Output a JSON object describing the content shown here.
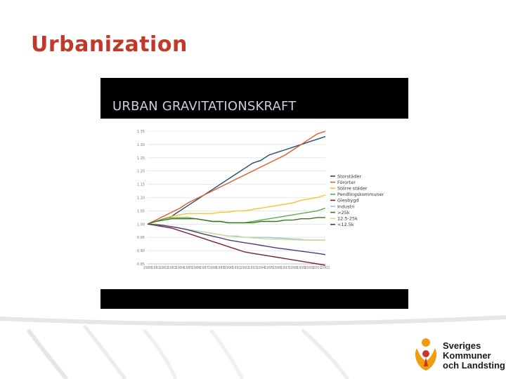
{
  "slide": {
    "title": "Urbanization"
  },
  "panel": {
    "heading": "URBAN GRAVITATIONSKRAFT"
  },
  "logo": {
    "line1": "Sveriges",
    "line2": "Kommuner",
    "line3": "och Landsting"
  },
  "colors": {
    "title": "#c0392b",
    "orange": "#f39c12"
  },
  "chart_data": {
    "type": "line",
    "x": [
      "1980",
      "1981",
      "1982",
      "1983",
      "1984",
      "1985",
      "1986",
      "1987",
      "1988",
      "1989",
      "1990",
      "1991",
      "1992",
      "1993",
      "1994",
      "1995",
      "1996",
      "1997",
      "1998",
      "1999",
      "2000",
      "2001",
      "2002"
    ],
    "ylim": [
      0.85,
      1.35
    ],
    "yticks": [
      0.85,
      0.9,
      0.95,
      1.0,
      1.05,
      1.1,
      1.15,
      1.2,
      1.25,
      1.3,
      1.35
    ],
    "grid": "horizontal",
    "legend": "right",
    "series": [
      {
        "name": "Storstäder",
        "color": "#1f4e79",
        "values": [
          1.0,
          1.01,
          1.02,
          1.03,
          1.05,
          1.07,
          1.09,
          1.11,
          1.13,
          1.15,
          1.17,
          1.19,
          1.21,
          1.23,
          1.24,
          1.26,
          1.27,
          1.28,
          1.29,
          1.3,
          1.31,
          1.32,
          1.33
        ]
      },
      {
        "name": "Förorter",
        "color": "#e05a2b",
        "values": [
          1.0,
          1.015,
          1.03,
          1.045,
          1.06,
          1.08,
          1.095,
          1.11,
          1.125,
          1.14,
          1.155,
          1.17,
          1.185,
          1.2,
          1.215,
          1.23,
          1.245,
          1.26,
          1.28,
          1.3,
          1.32,
          1.34,
          1.35
        ]
      },
      {
        "name": "Större städer",
        "color": "#f4c430",
        "values": [
          1.0,
          1.01,
          1.02,
          1.03,
          1.035,
          1.04,
          1.04,
          1.04,
          1.04,
          1.045,
          1.045,
          1.05,
          1.05,
          1.055,
          1.06,
          1.065,
          1.07,
          1.075,
          1.08,
          1.09,
          1.095,
          1.1,
          1.11
        ]
      },
      {
        "name": "Pendlingskommuner",
        "color": "#6aa84f",
        "values": [
          1.0,
          1.01,
          1.02,
          1.025,
          1.025,
          1.025,
          1.02,
          1.015,
          1.01,
          1.01,
          1.005,
          1.005,
          1.005,
          1.01,
          1.015,
          1.02,
          1.025,
          1.03,
          1.035,
          1.04,
          1.045,
          1.05,
          1.06
        ]
      },
      {
        "name": "Glesbygd",
        "color": "#7f1d3a",
        "values": [
          1.0,
          0.995,
          0.99,
          0.985,
          0.975,
          0.965,
          0.955,
          0.945,
          0.935,
          0.925,
          0.915,
          0.905,
          0.895,
          0.89,
          0.885,
          0.88,
          0.875,
          0.87,
          0.865,
          0.86,
          0.855,
          0.85,
          0.845
        ]
      },
      {
        "name": "Industri",
        "color": "#9dc3e6",
        "values": [
          1.0,
          0.997,
          0.995,
          0.99,
          0.985,
          0.98,
          0.975,
          0.97,
          0.965,
          0.96,
          0.955,
          0.955,
          0.95,
          0.95,
          0.95,
          0.95,
          0.948,
          0.946,
          0.944,
          0.942,
          0.94,
          0.94,
          0.94
        ]
      },
      {
        "name": ">25k",
        "color": "#38761d",
        "values": [
          1.0,
          1.01,
          1.015,
          1.02,
          1.02,
          1.02,
          1.02,
          1.015,
          1.01,
          1.01,
          1.005,
          1.005,
          1.005,
          1.005,
          1.01,
          1.01,
          1.01,
          1.015,
          1.015,
          1.02,
          1.02,
          1.025,
          1.025
        ]
      },
      {
        "name": "12.5-25k",
        "color": "#c5e08c",
        "values": [
          1.0,
          1.0,
          0.995,
          0.99,
          0.985,
          0.98,
          0.975,
          0.97,
          0.965,
          0.96,
          0.955,
          0.952,
          0.95,
          0.948,
          0.946,
          0.944,
          0.943,
          0.942,
          0.941,
          0.94,
          0.94,
          0.94,
          0.94
        ]
      },
      {
        "name": "<12.5k",
        "color": "#4b3a7a",
        "values": [
          1.0,
          0.998,
          0.995,
          0.99,
          0.985,
          0.978,
          0.97,
          0.962,
          0.955,
          0.948,
          0.94,
          0.935,
          0.93,
          0.925,
          0.92,
          0.915,
          0.91,
          0.906,
          0.902,
          0.898,
          0.894,
          0.89,
          0.885
        ]
      }
    ]
  }
}
